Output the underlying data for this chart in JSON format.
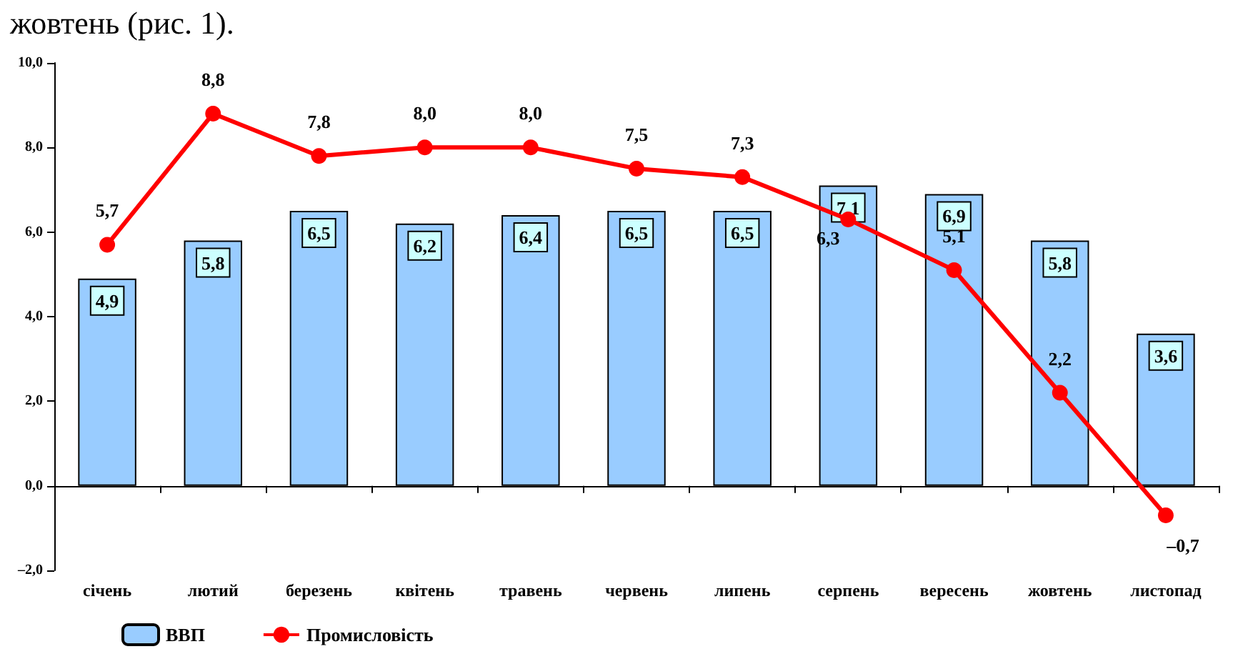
{
  "chart_data": {
    "type": "bar",
    "annotations": [
      "жовтень (рис. 1)."
    ],
    "categories": [
      "січень",
      "лютий",
      "березень",
      "квітень",
      "травень",
      "червень",
      "липень",
      "серпень",
      "вересень",
      "жовтень",
      "листопад"
    ],
    "series": [
      {
        "name": "ВВП",
        "color": "#99ccff",
        "values": [
          4.9,
          5.8,
          6.5,
          6.2,
          6.4,
          6.5,
          6.5,
          7.1,
          6.9,
          5.8,
          3.6
        ],
        "value_labels": [
          "4,9",
          "5,8",
          "6,5",
          "6,2",
          "6,4",
          "6,5",
          "6,5",
          "7,1",
          "6,9",
          "5,8",
          "3,6"
        ]
      },
      {
        "name": "Промисловість",
        "type": "line",
        "color": "#ff0000",
        "marker": "circle",
        "values": [
          5.7,
          8.8,
          7.8,
          8.0,
          8.0,
          7.5,
          7.3,
          6.3,
          5.1,
          2.2,
          -0.7
        ],
        "value_labels": [
          "5,7",
          "8,8",
          "7,8",
          "8,0",
          "8,0",
          "7,5",
          "7,3",
          "6,3",
          "5,1",
          "2,2",
          "–0,7"
        ]
      }
    ],
    "ylim": [
      -2,
      10
    ],
    "yticks": [
      {
        "value": -2,
        "label": "–2,0"
      },
      {
        "value": 0,
        "label": "0,0"
      },
      {
        "value": 2,
        "label": "2,0"
      },
      {
        "value": 4,
        "label": "4,0"
      },
      {
        "value": 6,
        "label": "6,0"
      },
      {
        "value": 8,
        "label": "8,0"
      },
      {
        "value": 10,
        "label": "10,0"
      }
    ],
    "legend": "bottom left"
  }
}
